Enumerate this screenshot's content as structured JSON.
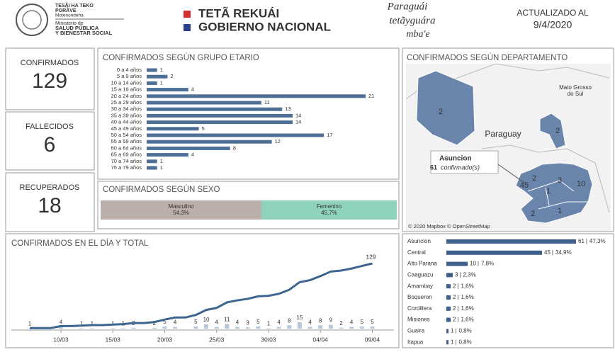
{
  "header": {
    "ministry_line1": "TESÃI HA TEKO",
    "ministry_line2": "PORÃVE",
    "ministry_line3": "Motenondeha",
    "ministry_line4": "Ministerio de",
    "ministry_line5": "SALUD PÚBLICA",
    "ministry_line6": "Y BIENESTAR SOCIAL",
    "gov_line1": "TETÃ REKUÁI",
    "gov_line2": "GOBIERNO NACIONAL",
    "slogan_line1": "Paraguái",
    "slogan_line2": "tetãyguára",
    "slogan_line3": "mba'e",
    "updated_label": "ACTUALIZADO AL",
    "updated_date": "9/4/2020"
  },
  "kpis": [
    {
      "label": "CONFIRMADOS",
      "value": 129,
      "color": "#3f6b98"
    },
    {
      "label": "FALLECIDOS",
      "value": 6,
      "color": "#222222"
    },
    {
      "label": "RECUPERADOS",
      "value": 18,
      "color": "#5fa85f"
    }
  ],
  "map": {
    "title": "CONFIRMADOS SEGÚN DEPARTAMENTO",
    "regions": [
      2,
      2,
      45,
      2,
      3,
      10,
      1,
      2,
      1
    ],
    "place_1": "Paraguay",
    "place_2": "Mato Grosso",
    "place_3": "do Sul",
    "tooltip_name": "Asuncion",
    "tooltip_count": 61,
    "tooltip_unit": "confirmado(s)",
    "credit": "© 2020 Mapbox © OpenStreetMap",
    "color": "#6a85ab"
  },
  "chart_data": [
    {
      "type": "bar",
      "title": "CONFIRMADOS SEGÚN GRUPO ETARIO",
      "categories": [
        "0 a 4 años",
        "5 a 9 años",
        "10 a 14 años",
        "15 a 19 años",
        "20 a 24 años",
        "25 a 29 años",
        "30 a 34 años",
        "35 a 39 años",
        "40 a 44 años",
        "45 a 49 años",
        "50 a 54 años",
        "55 a 59 años",
        "60 a 64 años",
        "65 a 69 años",
        "70 a 74 años",
        "75 a 79 años"
      ],
      "values": [
        1,
        2,
        1,
        4,
        21,
        11,
        13,
        14,
        14,
        5,
        17,
        12,
        8,
        4,
        1,
        1
      ],
      "color": "#4e6f96"
    },
    {
      "type": "stacked-bar",
      "title": "CONFIRMADOS SEGÚN SEXO",
      "categories": [
        "Masculino",
        "Femenino"
      ],
      "values": [
        54.3,
        45.7
      ],
      "value_labels": [
        "54,3%",
        "45,7%"
      ],
      "colors": [
        "#bcaea8",
        "#8fd3bc"
      ]
    },
    {
      "type": "combo",
      "title": "CONFIRMADOS EN EL DÍA Y TOTAL",
      "x": [
        null,
        null,
        null,
        "10/03",
        null,
        null,
        null,
        null,
        "15/03",
        null,
        null,
        null,
        null,
        "20/03",
        null,
        null,
        null,
        null,
        "25/03",
        null,
        null,
        null,
        null,
        "30/03",
        null,
        null,
        null,
        null,
        "04/04",
        null,
        null,
        null,
        null,
        "09/04"
      ],
      "series": [
        {
          "kind": "bar",
          "color": "#b7c6d8",
          "values": [
            1,
            0,
            0,
            4,
            0,
            1,
            1,
            0,
            1,
            1,
            2,
            0,
            2,
            5,
            4,
            0,
            5,
            10,
            4,
            11,
            4,
            3,
            5,
            1,
            4,
            8,
            15,
            4,
            8,
            9,
            2,
            4,
            5,
            5
          ],
          "value_labels": [
            1,
            null,
            null,
            4,
            null,
            1,
            1,
            null,
            1,
            1,
            2,
            null,
            2,
            5,
            4,
            null,
            5,
            10,
            4,
            11,
            4,
            3,
            5,
            1,
            4,
            8,
            15,
            4,
            8,
            9,
            2,
            4,
            5,
            5
          ]
        },
        {
          "kind": "line",
          "color": "#3d6590",
          "values": [
            1,
            1,
            1,
            5,
            5,
            6,
            7,
            7,
            8,
            9,
            11,
            11,
            13,
            18,
            22,
            22,
            27,
            37,
            41,
            52,
            56,
            59,
            64,
            65,
            69,
            77,
            92,
            96,
            104,
            113,
            115,
            119,
            124,
            129
          ],
          "value_labels": [
            null,
            null,
            null,
            null,
            null,
            null,
            null,
            null,
            null,
            null,
            null,
            null,
            null,
            null,
            null,
            null,
            null,
            null,
            null,
            null,
            null,
            null,
            null,
            null,
            null,
            null,
            null,
            null,
            null,
            null,
            null,
            null,
            null,
            129
          ]
        }
      ]
    },
    {
      "type": "bar",
      "categories": [
        "Asuncion",
        "Central",
        "Alto Parana",
        "Caaguazu",
        "Amambay",
        "Boqueron",
        "Cordillera",
        "Misiones",
        "Guaira",
        "Itapua"
      ],
      "values": [
        61,
        45,
        10,
        3,
        2,
        2,
        2,
        2,
        1,
        1
      ],
      "shares": [
        47.3,
        34.9,
        7.8,
        2.3,
        1.6,
        1.6,
        1.6,
        1.6,
        0.8,
        0.8
      ],
      "share_labels": [
        "47,3%",
        "34,9%",
        "7,8%",
        "2,3%",
        "1,6%",
        "1,6%",
        "1,6%",
        "1,6%",
        "0,8%",
        "0,8%"
      ],
      "color": "#3d5f8a"
    }
  ]
}
